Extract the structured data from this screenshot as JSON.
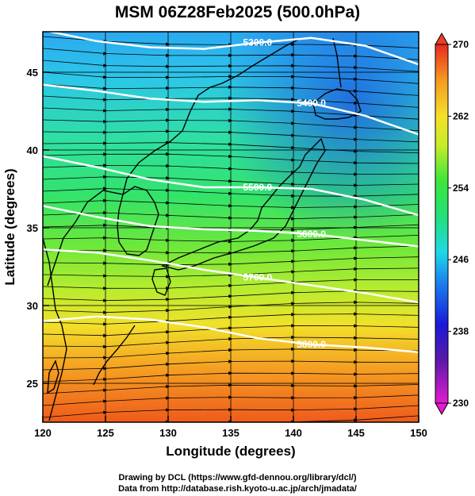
{
  "title": "MSM 06Z28Feb2025 (500.0hPa)",
  "x_axis": {
    "label": "Longitude (degrees)",
    "range": [
      120,
      150
    ],
    "ticks": [
      "120",
      "125",
      "130",
      "135",
      "140",
      "145",
      "150"
    ]
  },
  "y_axis": {
    "label": "Latitude  (degrees)",
    "range": [
      22.5,
      47.6
    ],
    "ticks": [
      "25",
      "30",
      "35",
      "40",
      "45"
    ]
  },
  "colorbar": {
    "min": 230,
    "max": 270,
    "ticks": [
      "230",
      "238",
      "246",
      "254",
      "262",
      "270"
    ]
  },
  "contours": [
    {
      "label": "5300.0",
      "lats": [
        47.7,
        47.0,
        46.6,
        46.5,
        46.9,
        47.2,
        46.7,
        45.5
      ],
      "color": "#ffffff"
    },
    {
      "label": "5400.0",
      "lats": [
        44.2,
        43.8,
        43.3,
        43.1,
        43.2,
        43.0,
        42.2,
        41.0
      ],
      "color": "#ffffff"
    },
    {
      "label": "5500.0",
      "lats": [
        39.6,
        38.9,
        38.1,
        37.6,
        37.6,
        37.5,
        36.8,
        35.8
      ],
      "color": "#ffffff"
    },
    {
      "label": "5600.0",
      "lats": [
        36.4,
        35.7,
        35.1,
        34.9,
        34.8,
        34.6,
        34.2,
        33.8
      ],
      "color": "#ffffff"
    },
    {
      "label": "5700.0",
      "lats": [
        33.6,
        33.4,
        32.9,
        32.3,
        31.8,
        31.3,
        30.8,
        30.2
      ],
      "color": "#ffffff"
    },
    {
      "label": "5800.0",
      "lats": [
        29.0,
        29.3,
        29.1,
        28.6,
        27.9,
        27.5,
        27.3,
        27.0
      ],
      "color": "#ffffff"
    }
  ],
  "credits": {
    "line1": "Drawing by DCL (https://www.gfd-dennou.org/library/dcl/)",
    "line2": "Data from http://database.rish.kyoto-u.ac.jp/arch/jmadata/"
  }
}
